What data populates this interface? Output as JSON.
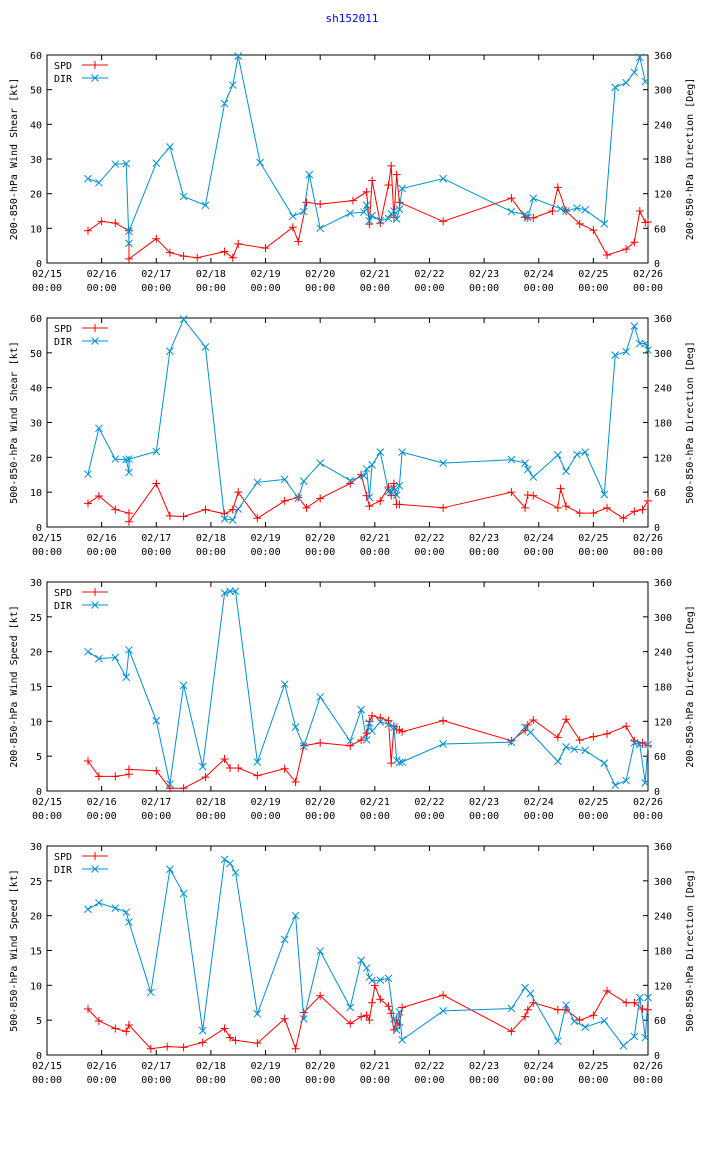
{
  "page_title": "sh152011",
  "series_colors": {
    "SPD": "#ff0000",
    "DIR": "#0090d0"
  },
  "chart_data": [
    {
      "type": "line",
      "ylabel": "200-850-hPa Wind Shear [kt]",
      "y2label": "200-850-hPa Direction [Deg]",
      "ylim": [
        0,
        60
      ],
      "yticks": [
        0,
        10,
        20,
        30,
        40,
        50,
        60
      ],
      "y2lim": [
        0,
        360
      ],
      "y2ticks": [
        0,
        60,
        120,
        180,
        240,
        300,
        360
      ],
      "xlim": [
        0,
        11
      ],
      "xticks": [
        {
          "date": "02/15",
          "time": "00:00"
        },
        {
          "date": "02/16",
          "time": "00:00"
        },
        {
          "date": "02/17",
          "time": "00:00"
        },
        {
          "date": "02/18",
          "time": "00:00"
        },
        {
          "date": "02/19",
          "time": "00:00"
        },
        {
          "date": "02/20",
          "time": "00:00"
        },
        {
          "date": "02/21",
          "time": "00:00"
        },
        {
          "date": "02/22",
          "time": "00:00"
        },
        {
          "date": "02/23",
          "time": "00:00"
        },
        {
          "date": "02/24",
          "time": "00:00"
        },
        {
          "date": "02/25",
          "time": "00:00"
        },
        {
          "date": "02/26",
          "time": "00:00"
        }
      ],
      "legend": [
        "SPD",
        "DIR"
      ],
      "series": [
        {
          "name": "SPD",
          "axis": "left",
          "x": [
            0.75,
            1.0,
            1.25,
            1.5,
            1.5,
            2.0,
            2.25,
            2.5,
            2.75,
            3.25,
            3.4,
            3.5,
            4.0,
            4.5,
            4.6,
            4.75,
            5.0,
            5.6,
            5.85,
            5.9,
            5.95,
            6.1,
            6.25,
            6.3,
            6.35,
            6.4,
            6.45,
            7.25,
            8.5,
            8.75,
            8.8,
            8.9,
            9.25,
            9.35,
            9.5,
            9.75,
            10.0,
            10.25,
            10.6,
            10.75,
            10.85,
            10.95,
            11.0
          ],
          "y": [
            9.3,
            12,
            11.5,
            9.3,
            1.2,
            7,
            3,
            2,
            1.5,
            3.3,
            1.5,
            5.5,
            4.3,
            10.3,
            6.2,
            17.5,
            17,
            18,
            20.5,
            11.2,
            23.8,
            11.5,
            22.5,
            28,
            13.2,
            25.5,
            17.5,
            12,
            18.7,
            13.2,
            13,
            13,
            15,
            21.8,
            15,
            11.3,
            9.5,
            2.3,
            4,
            6,
            15,
            11.7,
            11.8
          ]
        },
        {
          "name": "DIR",
          "axis": "right",
          "x": [
            0.75,
            0.95,
            1.25,
            1.45,
            1.5,
            1.5,
            2.0,
            2.25,
            2.5,
            2.9,
            3.25,
            3.4,
            3.5,
            3.9,
            4.5,
            4.7,
            4.8,
            5.0,
            5.55,
            5.8,
            5.85,
            5.9,
            5.95,
            6.1,
            6.25,
            6.3,
            6.35,
            6.4,
            6.45,
            6.5,
            7.25,
            8.5,
            8.75,
            8.8,
            8.9,
            9.4,
            9.5,
            9.7,
            9.85,
            10.2,
            10.4,
            10.6,
            10.75,
            10.85,
            10.95
          ],
          "y": [
            146,
            139,
            171,
            172,
            34,
            55,
            173,
            201,
            115,
            100,
            276,
            308,
            358,
            174,
            81,
            89,
            153,
            60,
            86,
            88,
            100,
            73,
            82,
            73,
            77,
            85,
            90,
            76,
            93,
            129,
            146,
            89,
            84,
            79,
            112,
            94,
            90,
            95,
            92,
            68,
            304,
            312,
            330,
            356,
            314
          ]
        }
      ]
    },
    {
      "type": "line",
      "ylabel": "500-850-hPa Wind Shear [kt]",
      "y2label": "500-850-hPa Direction [Deg]",
      "ylim": [
        0,
        60
      ],
      "yticks": [
        0,
        10,
        20,
        30,
        40,
        50,
        60
      ],
      "y2lim": [
        0,
        360
      ],
      "y2ticks": [
        0,
        60,
        120,
        180,
        240,
        300,
        360
      ],
      "xlim": [
        0,
        11
      ],
      "xticks": [
        {
          "date": "02/15",
          "time": "00:00"
        },
        {
          "date": "02/16",
          "time": "00:00"
        },
        {
          "date": "02/17",
          "time": "00:00"
        },
        {
          "date": "02/18",
          "time": "00:00"
        },
        {
          "date": "02/19",
          "time": "00:00"
        },
        {
          "date": "02/20",
          "time": "00:00"
        },
        {
          "date": "02/21",
          "time": "00:00"
        },
        {
          "date": "02/22",
          "time": "00:00"
        },
        {
          "date": "02/23",
          "time": "00:00"
        },
        {
          "date": "02/24",
          "time": "00:00"
        },
        {
          "date": "02/25",
          "time": "00:00"
        },
        {
          "date": "02/26",
          "time": "00:00"
        }
      ],
      "legend": [
        "SPD",
        "DIR"
      ],
      "series": [
        {
          "name": "SPD",
          "axis": "left",
          "x": [
            0.75,
            0.95,
            1.25,
            1.5,
            1.5,
            2.0,
            2.25,
            2.5,
            2.9,
            3.25,
            3.4,
            3.5,
            3.85,
            4.35,
            4.6,
            4.75,
            5.0,
            5.55,
            5.75,
            5.85,
            5.9,
            6.1,
            6.25,
            6.3,
            6.35,
            6.4,
            6.45,
            7.25,
            8.5,
            8.75,
            8.8,
            8.9,
            9.35,
            9.4,
            9.5,
            9.75,
            10.0,
            10.25,
            10.55,
            10.75,
            10.9,
            11.0
          ],
          "y": [
            6.8,
            8.9,
            5,
            4,
            1.5,
            12.5,
            3.2,
            3,
            5,
            3.8,
            5,
            10,
            2.5,
            7.5,
            8.5,
            5.5,
            8.2,
            12.5,
            15,
            9,
            6,
            7.5,
            11.5,
            9,
            12.5,
            6.5,
            6.5,
            5.5,
            10,
            5.5,
            9.2,
            9,
            5.5,
            11,
            6,
            4,
            4,
            5.5,
            2.5,
            4.5,
            5,
            7.5
          ]
        },
        {
          "name": "DIR",
          "axis": "right",
          "x": [
            0.75,
            0.95,
            1.25,
            1.45,
            1.5,
            1.5,
            2.0,
            2.25,
            2.5,
            2.9,
            3.25,
            3.4,
            3.5,
            3.85,
            4.35,
            4.6,
            4.7,
            5.0,
            5.55,
            5.8,
            5.85,
            5.9,
            5.95,
            6.1,
            6.25,
            6.3,
            6.35,
            6.4,
            6.45,
            6.5,
            7.25,
            8.5,
            8.75,
            8.8,
            8.9,
            9.35,
            9.5,
            9.7,
            9.85,
            10.2,
            10.4,
            10.6,
            10.75,
            10.85,
            10.95,
            11.0
          ],
          "y": [
            91,
            170,
            117,
            116,
            94,
            117,
            130,
            303,
            358,
            310,
            14,
            12,
            31,
            77,
            82,
            50,
            79,
            110,
            80,
            88,
            100,
            51,
            107,
            129,
            61,
            60,
            67,
            55,
            71,
            129,
            110,
            116,
            110,
            99,
            86,
            124,
            96,
            125,
            129,
            56,
            296,
            302,
            346,
            316,
            316,
            305
          ]
        }
      ]
    },
    {
      "type": "line",
      "ylabel": "200-850-hPa Wind Speed [kt]",
      "y2label": "200-850-hPa Direction [Deg]",
      "ylim": [
        0,
        30
      ],
      "yticks": [
        0,
        5,
        10,
        15,
        20,
        25,
        30
      ],
      "y2lim": [
        0,
        360
      ],
      "y2ticks": [
        0,
        60,
        120,
        180,
        240,
        300,
        360
      ],
      "xlim": [
        0,
        11
      ],
      "xticks": [
        {
          "date": "02/15",
          "time": "00:00"
        },
        {
          "date": "02/16",
          "time": "00:00"
        },
        {
          "date": "02/17",
          "time": "00:00"
        },
        {
          "date": "02/18",
          "time": "00:00"
        },
        {
          "date": "02/19",
          "time": "00:00"
        },
        {
          "date": "02/20",
          "time": "00:00"
        },
        {
          "date": "02/21",
          "time": "00:00"
        },
        {
          "date": "02/22",
          "time": "00:00"
        },
        {
          "date": "02/23",
          "time": "00:00"
        },
        {
          "date": "02/24",
          "time": "00:00"
        },
        {
          "date": "02/25",
          "time": "00:00"
        },
        {
          "date": "02/26",
          "time": "00:00"
        }
      ],
      "legend": [
        "SPD",
        "DIR"
      ],
      "series": [
        {
          "name": "SPD",
          "axis": "left",
          "x": [
            0.75,
            0.95,
            1.25,
            1.5,
            1.5,
            2.0,
            2.25,
            2.5,
            2.9,
            3.25,
            3.35,
            3.5,
            3.85,
            4.35,
            4.55,
            4.7,
            5.0,
            5.55,
            5.75,
            5.85,
            5.9,
            5.95,
            6.1,
            6.25,
            6.3,
            6.35,
            6.4,
            6.45,
            6.5,
            7.25,
            8.5,
            8.75,
            8.8,
            8.9,
            9.35,
            9.5,
            9.75,
            10.0,
            10.25,
            10.6,
            10.75,
            10.9,
            11.0
          ],
          "y": [
            4.3,
            2.1,
            2.1,
            2.4,
            3.1,
            2.9,
            0.4,
            0.4,
            2.0,
            4.6,
            3.3,
            3.3,
            2.2,
            3.2,
            1.3,
            6.5,
            6.9,
            6.5,
            7.3,
            8.3,
            10.0,
            10.8,
            10.5,
            10.1,
            4.0,
            9.3,
            8.8,
            8.8,
            8.5,
            10.1,
            7.2,
            8.7,
            9.5,
            10.2,
            7.7,
            10.3,
            7.3,
            7.8,
            8.2,
            9.3,
            7.2,
            6.9,
            6.5
          ]
        },
        {
          "name": "DIR",
          "axis": "right",
          "x": [
            0.75,
            0.95,
            1.25,
            1.45,
            1.5,
            2.0,
            2.25,
            2.5,
            2.85,
            3.25,
            3.35,
            3.45,
            3.85,
            4.35,
            4.55,
            4.7,
            5.0,
            5.55,
            5.75,
            5.85,
            5.9,
            5.95,
            6.1,
            6.25,
            6.35,
            6.4,
            6.45,
            6.5,
            7.25,
            8.5,
            8.75,
            8.85,
            9.35,
            9.5,
            9.65,
            9.85,
            10.2,
            10.4,
            10.6,
            10.75,
            10.85,
            10.95,
            11.0
          ],
          "y": [
            240,
            228,
            230,
            196,
            243,
            121,
            12,
            182,
            42,
            341,
            344,
            344,
            50,
            184,
            110,
            77,
            162,
            86,
            140,
            88,
            117,
            103,
            119,
            115,
            110,
            53,
            49,
            50,
            81,
            84,
            110,
            101,
            51,
            76,
            72,
            70,
            48,
            10,
            18,
            83,
            80,
            14,
            80
          ]
        }
      ]
    },
    {
      "type": "line",
      "ylabel": "500-850-hPa Wind Speed [kt]",
      "y2label": "500-850-hPa Direction [Deg]",
      "ylim": [
        0,
        30
      ],
      "yticks": [
        0,
        5,
        10,
        15,
        20,
        25,
        30
      ],
      "y2lim": [
        0,
        360
      ],
      "y2ticks": [
        0,
        60,
        120,
        180,
        240,
        300,
        360
      ],
      "xlim": [
        0,
        11
      ],
      "xticks": [
        {
          "date": "02/15",
          "time": "00:00"
        },
        {
          "date": "02/16",
          "time": "00:00"
        },
        {
          "date": "02/17",
          "time": "00:00"
        },
        {
          "date": "02/18",
          "time": "00:00"
        },
        {
          "date": "02/19",
          "time": "00:00"
        },
        {
          "date": "02/20",
          "time": "00:00"
        },
        {
          "date": "02/21",
          "time": "00:00"
        },
        {
          "date": "02/22",
          "time": "00:00"
        },
        {
          "date": "02/23",
          "time": "00:00"
        },
        {
          "date": "02/24",
          "time": "00:00"
        },
        {
          "date": "02/25",
          "time": "00:00"
        },
        {
          "date": "02/26",
          "time": "00:00"
        }
      ],
      "legend": [
        "SPD",
        "DIR"
      ],
      "series": [
        {
          "name": "SPD",
          "axis": "left",
          "x": [
            0.75,
            0.95,
            1.25,
            1.45,
            1.5,
            1.9,
            2.2,
            2.5,
            2.85,
            3.25,
            3.35,
            3.45,
            3.85,
            4.35,
            4.55,
            4.7,
            5.0,
            5.55,
            5.75,
            5.85,
            5.9,
            5.95,
            6.0,
            6.1,
            6.25,
            6.3,
            6.35,
            6.4,
            6.45,
            6.5,
            7.25,
            8.5,
            8.75,
            8.8,
            8.9,
            9.35,
            9.5,
            9.75,
            10.0,
            10.25,
            10.6,
            10.75,
            10.9,
            11.0
          ],
          "y": [
            6.6,
            4.9,
            3.8,
            3.4,
            4.3,
            0.9,
            1.2,
            1.1,
            1.8,
            3.8,
            2.5,
            2.1,
            1.7,
            5.2,
            0.9,
            6.1,
            8.5,
            4.5,
            5.5,
            5.7,
            5.0,
            7.5,
            10.0,
            8.0,
            7.0,
            6.0,
            3.6,
            5.0,
            4.3,
            6.8,
            8.6,
            3.4,
            5.5,
            6.5,
            7.5,
            6.5,
            6.5,
            5.0,
            5.7,
            9.2,
            7.5,
            7.5,
            6.6,
            6.5
          ]
        },
        {
          "name": "DIR",
          "axis": "right",
          "x": [
            0.75,
            0.95,
            1.25,
            1.45,
            1.5,
            1.9,
            2.25,
            2.5,
            2.85,
            3.25,
            3.35,
            3.45,
            3.85,
            4.35,
            4.55,
            4.7,
            5.0,
            5.55,
            5.75,
            5.85,
            5.9,
            5.95,
            6.1,
            6.25,
            6.35,
            6.4,
            6.45,
            6.5,
            7.25,
            8.5,
            8.75,
            8.85,
            9.35,
            9.5,
            9.65,
            9.85,
            10.2,
            10.55,
            10.75,
            10.85,
            10.95,
            11.0
          ],
          "y": [
            251,
            262,
            253,
            246,
            229,
            108,
            320,
            278,
            42,
            337,
            330,
            314,
            71,
            199,
            240,
            62,
            179,
            82,
            163,
            150,
            134,
            128,
            129,
            132,
            62,
            43,
            74,
            26,
            76,
            80,
            116,
            106,
            24,
            86,
            58,
            48,
            59,
            16,
            32,
            99,
            30,
            99
          ]
        }
      ]
    }
  ]
}
